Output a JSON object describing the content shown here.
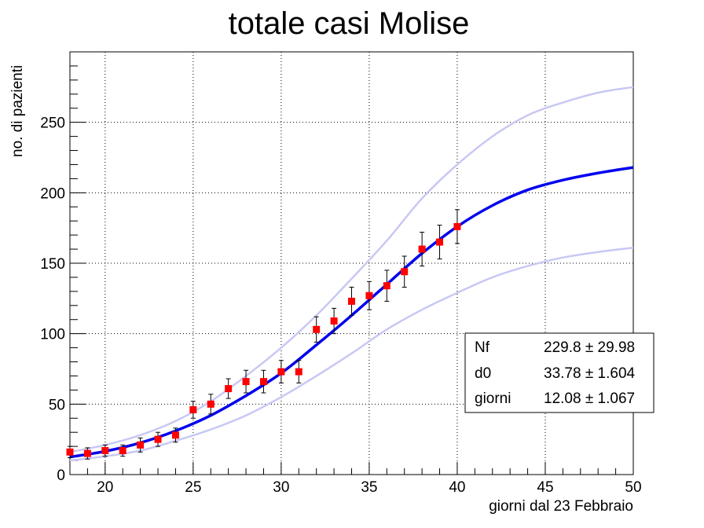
{
  "chart_data": {
    "type": "scatter",
    "title": "totale casi Molise",
    "xlabel": "giorni dal 23 Febbraio",
    "ylabel": "no. di pazienti",
    "xlim": [
      18,
      50
    ],
    "ylim": [
      0,
      300
    ],
    "x_ticks": [
      20,
      25,
      30,
      35,
      40,
      45,
      50
    ],
    "y_ticks": [
      0,
      50,
      100,
      150,
      200,
      250
    ],
    "grid": true,
    "colors": {
      "data": "#ff0000",
      "fit": "#0000ee",
      "band": "#c8c8f4",
      "error_bar": "#000000"
    },
    "series": [
      {
        "kind": "points",
        "marker": "square",
        "x": [
          18,
          19,
          20,
          21,
          22,
          23,
          24,
          25,
          26,
          27,
          28,
          29,
          30,
          31,
          32,
          33,
          34,
          35,
          36,
          37,
          38,
          39,
          40
        ],
        "y": [
          16,
          15,
          17,
          17,
          21,
          25,
          28,
          46,
          50,
          61,
          66,
          66,
          73,
          73,
          103,
          109,
          123,
          127,
          134,
          144,
          160,
          165,
          176
        ],
        "err": [
          4,
          4,
          4,
          4,
          5,
          5,
          5,
          6,
          7,
          7,
          8,
          8,
          8,
          8,
          9,
          9,
          10,
          10,
          11,
          11,
          12,
          12,
          12
        ]
      },
      {
        "kind": "fit",
        "x": [
          18,
          20,
          22,
          24,
          26,
          28,
          30,
          32,
          34,
          36,
          38,
          40,
          42,
          44,
          46,
          48,
          50
        ],
        "y": [
          12.5,
          16.5,
          22.5,
          31,
          42,
          56,
          72,
          92,
          113,
          135,
          157,
          176,
          191,
          202,
          209,
          214,
          218
        ]
      },
      {
        "kind": "band-upper",
        "x": [
          18,
          20,
          22,
          24,
          26,
          28,
          30,
          32,
          34,
          36,
          38,
          40,
          42,
          44,
          46,
          48,
          50
        ],
        "y": [
          16,
          21,
          28,
          38,
          52,
          70,
          90,
          113,
          139,
          166,
          196,
          220,
          240,
          255,
          264,
          271,
          275
        ]
      },
      {
        "kind": "band-lower",
        "x": [
          18,
          20,
          22,
          24,
          26,
          28,
          30,
          32,
          34,
          36,
          38,
          40,
          42,
          44,
          46,
          48,
          50
        ],
        "y": [
          10,
          13,
          17,
          24,
          32,
          42,
          55,
          70,
          86,
          103,
          117,
          129,
          140,
          148,
          154,
          158,
          161
        ]
      }
    ],
    "stats_box": {
      "rows": [
        {
          "name": "Nf",
          "value": "229.8 ± 29.98"
        },
        {
          "name": "d0",
          "value": "33.78 ± 1.604"
        },
        {
          "name": "giorni",
          "value": "12.08 ± 1.067"
        }
      ]
    }
  }
}
